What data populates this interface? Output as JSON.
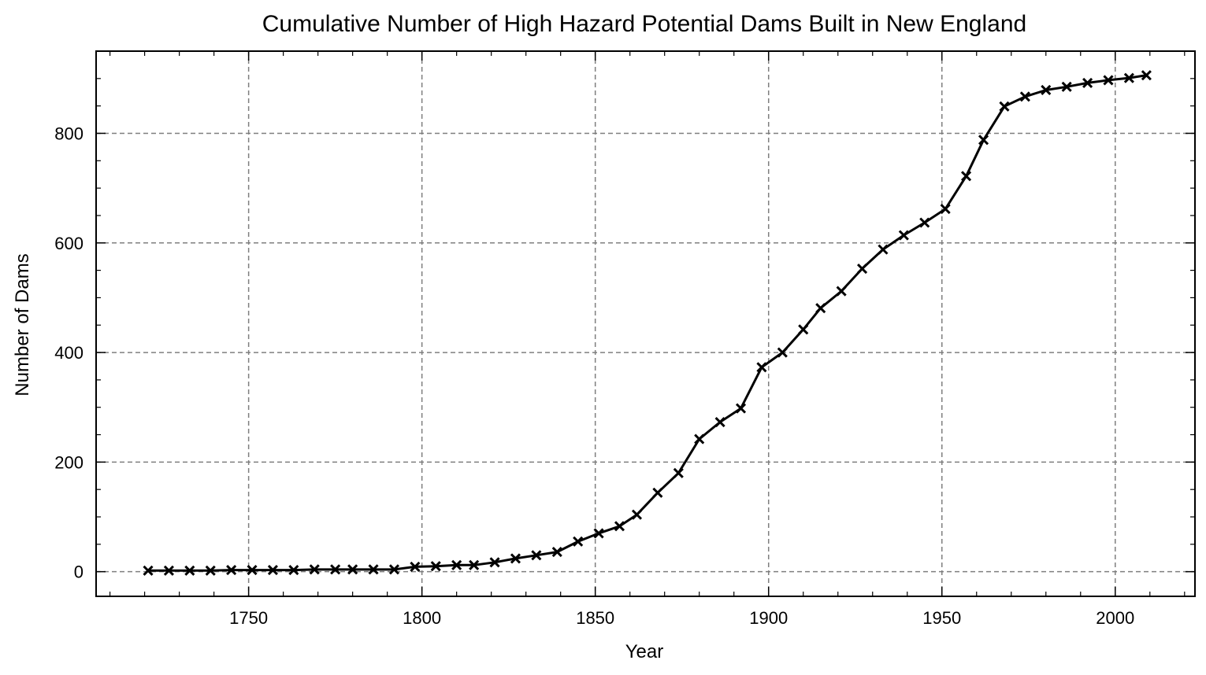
{
  "chart_data": {
    "type": "line",
    "title": "Cumulative Number of High Hazard Potential Dams Built in New England",
    "xlabel": "Year",
    "ylabel": "Number of Dams",
    "xlim": [
      1706,
      2023
    ],
    "ylim": [
      -45,
      950
    ],
    "xticks": [
      1750,
      1800,
      1850,
      1900,
      1950,
      2000
    ],
    "yticks": [
      0,
      200,
      400,
      600,
      800
    ],
    "xticks_minor_step": 10,
    "yticks_minor_step": 50,
    "grid": true,
    "legend": "none",
    "marker": "x",
    "color": "#000000",
    "x": [
      1721,
      1727,
      1733,
      1739,
      1745,
      1751,
      1757,
      1763,
      1769,
      1775,
      1780,
      1786,
      1792,
      1798,
      1804,
      1810,
      1815,
      1821,
      1827,
      1833,
      1839,
      1845,
      1851,
      1857,
      1862,
      1868,
      1874,
      1880,
      1886,
      1892,
      1898,
      1904,
      1910,
      1915,
      1921,
      1927,
      1933,
      1939,
      1945,
      1951,
      1957,
      1962,
      1968,
      1974,
      1980,
      1986,
      1992,
      1998,
      2004,
      2009
    ],
    "y": [
      2,
      2,
      2,
      2,
      3,
      3,
      3,
      3,
      4,
      4,
      4,
      4,
      4,
      9,
      10,
      12,
      12,
      17,
      24,
      30,
      36,
      55,
      70,
      83,
      104,
      144,
      180,
      242,
      273,
      298,
      373,
      400,
      442,
      481,
      512,
      553,
      588,
      614,
      637,
      662,
      722,
      788,
      849,
      867,
      879,
      885,
      892,
      897,
      901,
      906
    ]
  }
}
